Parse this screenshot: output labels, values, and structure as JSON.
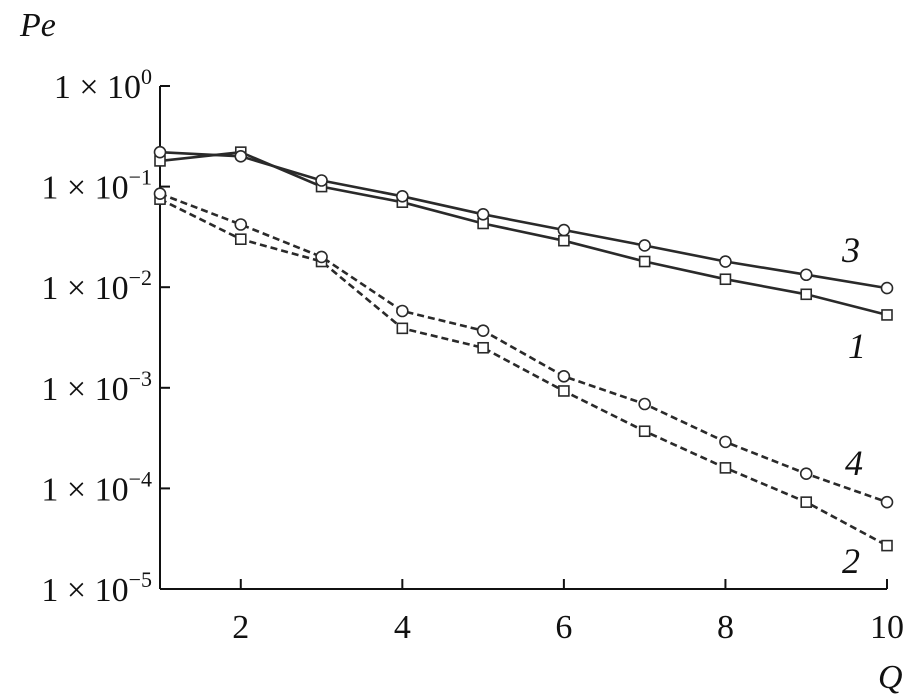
{
  "chart_data": {
    "type": "line",
    "xlabel": "Q",
    "ylabel": "Pe",
    "xlim": [
      1,
      10
    ],
    "ylim": [
      1e-05,
      1
    ],
    "y_scale": "log",
    "grid": false,
    "x_ticks": [
      {
        "value": 2,
        "label": "2"
      },
      {
        "value": 4,
        "label": "4"
      },
      {
        "value": 6,
        "label": "6"
      },
      {
        "value": 8,
        "label": "8"
      },
      {
        "value": 10,
        "label": "10"
      }
    ],
    "y_ticks": [
      {
        "value": 1,
        "base": "1 × 10",
        "exp": "0"
      },
      {
        "value": 0.1,
        "base": "1 × 10",
        "exp": "−1"
      },
      {
        "value": 0.01,
        "base": "1 × 10",
        "exp": "−2"
      },
      {
        "value": 0.001,
        "base": "1 × 10",
        "exp": "−3"
      },
      {
        "value": 0.0001,
        "base": "1 × 10",
        "exp": "−4"
      },
      {
        "value": 1e-05,
        "base": "1 × 10",
        "exp": "−5"
      }
    ],
    "x": [
      1,
      2,
      3,
      4,
      5,
      6,
      7,
      8,
      9,
      10
    ],
    "series": [
      {
        "name": "1",
        "line_style": "solid",
        "marker": "square",
        "color": "#2a2a2a",
        "values": [
          0.18,
          0.22,
          0.1,
          0.07,
          0.043,
          0.029,
          0.018,
          0.012,
          0.0085,
          0.0053
        ]
      },
      {
        "name": "2",
        "line_style": "dashed",
        "marker": "square",
        "color": "#2a2a2a",
        "values": [
          0.075,
          0.03,
          0.018,
          0.0039,
          0.0025,
          0.00093,
          0.00037,
          0.00016,
          7.3e-05,
          2.7e-05
        ]
      },
      {
        "name": "3",
        "line_style": "solid",
        "marker": "circle",
        "color": "#2a2a2a",
        "values": [
          0.22,
          0.2,
          0.115,
          0.08,
          0.053,
          0.037,
          0.026,
          0.018,
          0.0133,
          0.0098
        ]
      },
      {
        "name": "4",
        "line_style": "dashed",
        "marker": "circle",
        "color": "#2a2a2a",
        "values": [
          0.085,
          0.042,
          0.02,
          0.0058,
          0.0037,
          0.0013,
          0.00069,
          0.00029,
          0.00014,
          7.3e-05
        ]
      }
    ]
  }
}
